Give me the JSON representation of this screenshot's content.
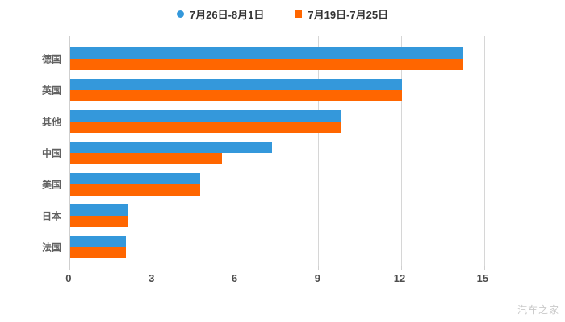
{
  "legend": [
    {
      "label": "7月26日-8月1日",
      "color": "#3498db",
      "marker": "circle"
    },
    {
      "label": "7月19日-7月25日",
      "color": "#ff6600",
      "marker": "square"
    }
  ],
  "watermark": "汽车之家",
  "chart_data": {
    "type": "bar",
    "orientation": "horizontal",
    "title": "",
    "xlabel": "",
    "ylabel": "",
    "categories": [
      "德国",
      "英国",
      "其他",
      "中国",
      "美国",
      "日本",
      "法国"
    ],
    "series": [
      {
        "name": "7月26日-8月1日",
        "color": "#3498db",
        "values": [
          14.2,
          12.0,
          9.8,
          7.3,
          4.7,
          2.1,
          2.0
        ]
      },
      {
        "name": "7月19日-7月25日",
        "color": "#ff6600",
        "values": [
          14.2,
          12.0,
          9.8,
          5.5,
          4.7,
          2.1,
          2.0
        ]
      }
    ],
    "xlim": [
      0,
      15
    ],
    "xticks": [
      0,
      3,
      6,
      9,
      12,
      15
    ],
    "grid": true,
    "legend_position": "top"
  }
}
